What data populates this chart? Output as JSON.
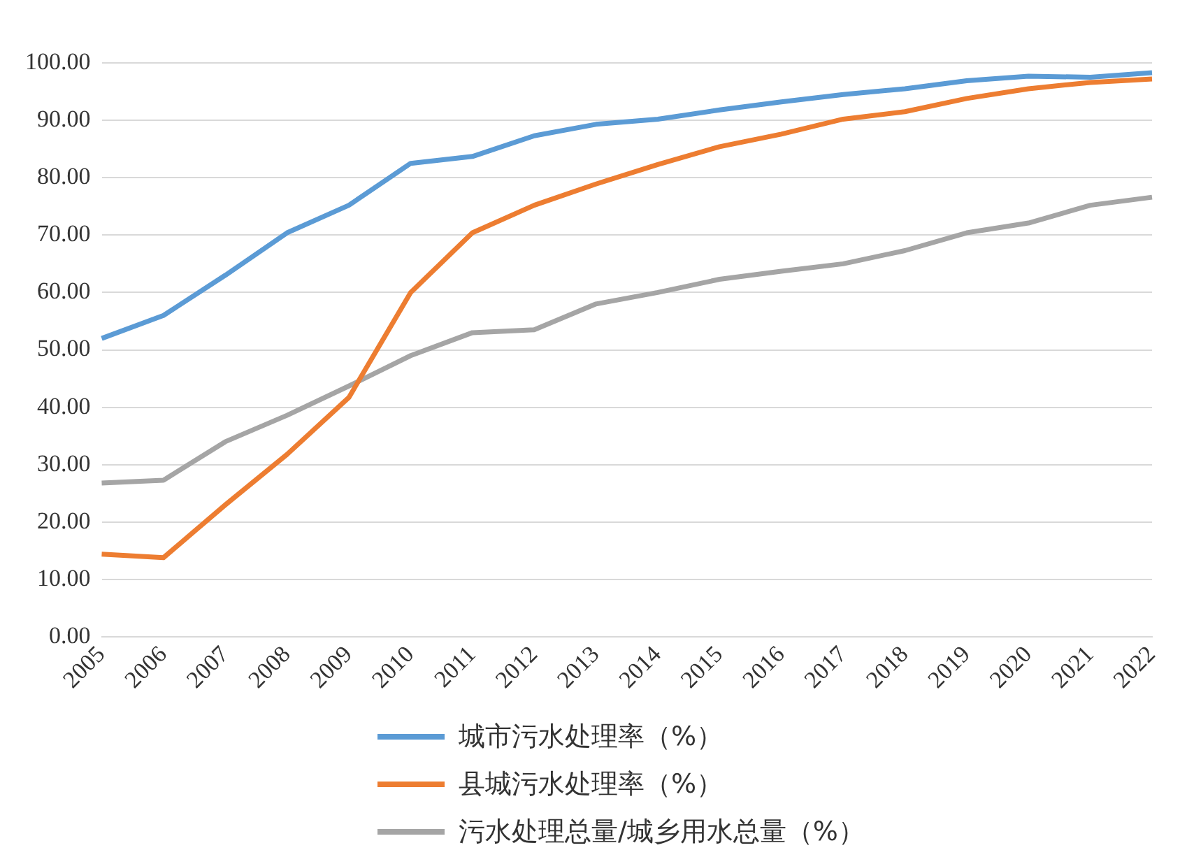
{
  "chart_data": {
    "type": "line",
    "categories": [
      "2005",
      "2006",
      "2007",
      "2008",
      "2009",
      "2010",
      "2011",
      "2012",
      "2013",
      "2014",
      "2015",
      "2016",
      "2017",
      "2018",
      "2019",
      "2020",
      "2021",
      "2022"
    ],
    "series": [
      {
        "name": "城市污水处理率（%）",
        "color": "#5b9bd5",
        "values": [
          52.0,
          56.0,
          63.0,
          70.4,
          75.2,
          82.5,
          83.7,
          87.3,
          89.3,
          90.2,
          91.8,
          93.2,
          94.5,
          95.5,
          96.9,
          97.7,
          97.5,
          98.3
        ]
      },
      {
        "name": "县城污水处理率（%）",
        "color": "#ed7d31",
        "values": [
          14.4,
          13.8,
          23.0,
          31.8,
          41.7,
          60.0,
          70.4,
          75.2,
          78.9,
          82.3,
          85.4,
          87.6,
          90.2,
          91.5,
          93.8,
          95.5,
          96.6,
          97.2
        ]
      },
      {
        "name": "污水处理总量/城乡用水总量（%）",
        "color": "#a5a5a5",
        "values": [
          26.8,
          27.3,
          34.0,
          38.6,
          43.7,
          49.0,
          53.0,
          53.5,
          58.0,
          60.0,
          62.3,
          63.7,
          65.0,
          67.3,
          70.4,
          72.1,
          75.2,
          76.6
        ]
      }
    ],
    "ylim": [
      0,
      100
    ],
    "yticks": [
      {
        "value": 0,
        "label": "0.00"
      },
      {
        "value": 10,
        "label": "10.00"
      },
      {
        "value": 20,
        "label": "20.00"
      },
      {
        "value": 30,
        "label": "30.00"
      },
      {
        "value": 40,
        "label": "40.00"
      },
      {
        "value": 50,
        "label": "50.00"
      },
      {
        "value": 60,
        "label": "60.00"
      },
      {
        "value": 70,
        "label": "70.00"
      },
      {
        "value": 80,
        "label": "80.00"
      },
      {
        "value": 90,
        "label": "90.00"
      },
      {
        "value": 100,
        "label": "100.00"
      }
    ],
    "grid": "y",
    "legend": "bottom",
    "marker": "none",
    "line_style": "solid"
  }
}
